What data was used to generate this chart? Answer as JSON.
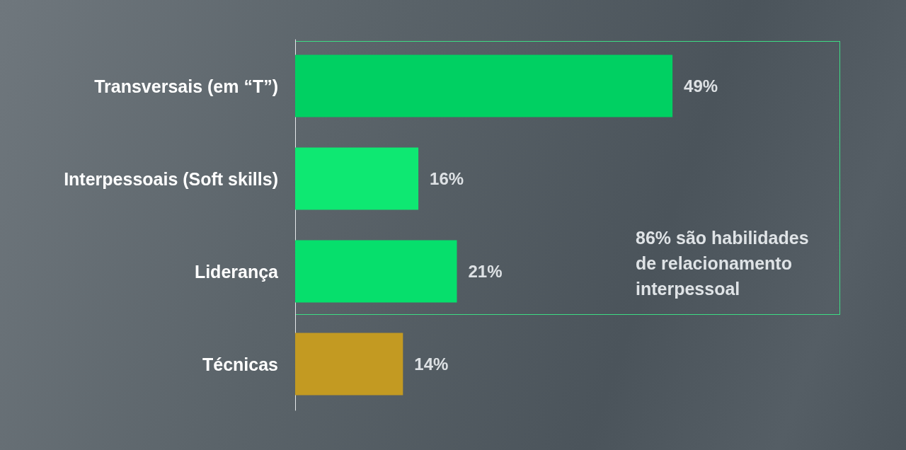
{
  "chart_data": {
    "type": "bar",
    "orientation": "horizontal",
    "categories": [
      "Transversais (em “T”)",
      "Interpessoais (Soft skills)",
      "Liderança",
      "Técnicas"
    ],
    "values": [
      49,
      16,
      21,
      14
    ],
    "colors": [
      "#00d062",
      "#0ee872",
      "#06df6c",
      "#c39a22"
    ],
    "value_labels": [
      "49%",
      "16%",
      "21%",
      "14%"
    ],
    "tick_labels": "y",
    "annotations": [
      "86% são habilidades de relacionamento interpessoal"
    ]
  }
}
